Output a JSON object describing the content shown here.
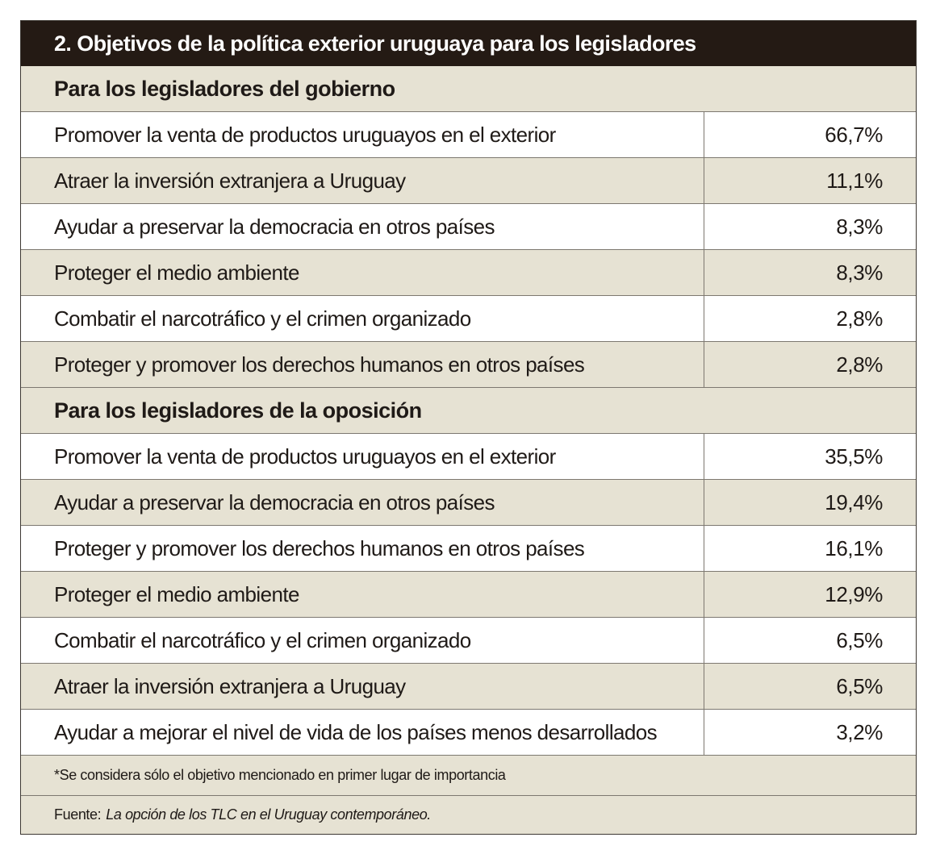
{
  "table": {
    "title": "2. Objetivos de la política exterior uruguaya para los legisladores",
    "sections": [
      {
        "header": "Para los legisladores del gobierno",
        "rows": [
          {
            "label": "Promover la venta de productos uruguayos en el exterior",
            "value": "66,7%"
          },
          {
            "label": "Atraer la inversión extranjera a Uruguay",
            "value": "11,1%"
          },
          {
            "label": "Ayudar a preservar la democracia en otros países",
            "value": "8,3%"
          },
          {
            "label": "Proteger el medio ambiente",
            "value": "8,3%"
          },
          {
            "label": "Combatir el narcotráfico y el crimen organizado",
            "value": "2,8%"
          },
          {
            "label": "Proteger y promover los derechos humanos en otros países",
            "value": "2,8%"
          }
        ]
      },
      {
        "header": "Para los legisladores de la oposición",
        "rows": [
          {
            "label": "Promover la venta de productos uruguayos en el exterior",
            "value": "35,5%"
          },
          {
            "label": "Ayudar a preservar la democracia en otros países",
            "value": "19,4%"
          },
          {
            "label": "Proteger y promover los derechos humanos en otros países",
            "value": "16,1%"
          },
          {
            "label": "Proteger el medio ambiente",
            "value": "12,9%"
          },
          {
            "label": "Combatir el narcotráfico y el crimen organizado",
            "value": "6,5%"
          },
          {
            "label": "Atraer la inversión extranjera a Uruguay",
            "value": "6,5%"
          },
          {
            "label": "Ayudar a mejorar el nivel de vida de los países menos desarrollados",
            "value": "3,2%"
          }
        ]
      }
    ],
    "note": "*Se considera sólo el objetivo mencionado en primer lugar de importancia",
    "source_label": "Fuente:",
    "source_title": "La opción de los TLC en el Uruguay contemporáneo."
  },
  "colors": {
    "title_background": "#241a14",
    "shaded_background": "#e6e2d3",
    "border": "#7d7870"
  }
}
